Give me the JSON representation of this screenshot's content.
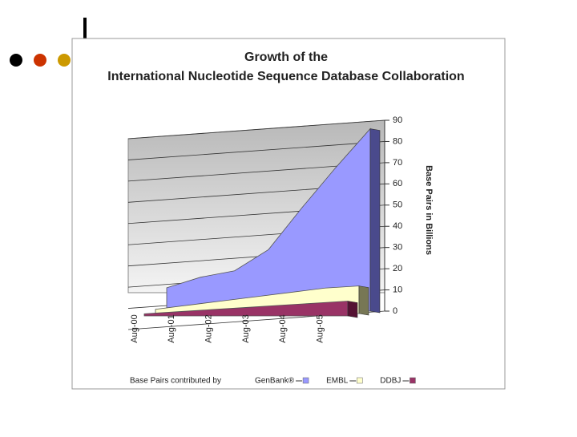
{
  "chart_data": {
    "type": "area",
    "title": [
      "Growth of the",
      "International Nucleotide Sequence Database Collaboration"
    ],
    "categories": [
      "Aug-00",
      "Aug-01",
      "Aug-02",
      "Aug-03",
      "Aug-04",
      "Aug-05",
      null
    ],
    "series": [
      {
        "name": "GenBank®",
        "color": "#9999ff",
        "values": [
          11,
          16,
          19,
          29,
          49,
          68,
          86
        ]
      },
      {
        "name": "EMBL",
        "color": "#ffffcc",
        "values": [
          2,
          4,
          6,
          8,
          10,
          12,
          13
        ]
      },
      {
        "name": "DDBJ",
        "color": "#993366",
        "values": [
          1,
          2,
          3,
          4,
          5,
          6,
          7
        ]
      }
    ],
    "y_label": "Base Pairs in Billions",
    "legend_title": "Base Pairs contributed by",
    "ylim": [
      0,
      90
    ],
    "yticks": [
      0,
      10,
      20,
      30,
      40,
      50,
      60,
      70,
      80,
      90
    ],
    "grid": true
  }
}
